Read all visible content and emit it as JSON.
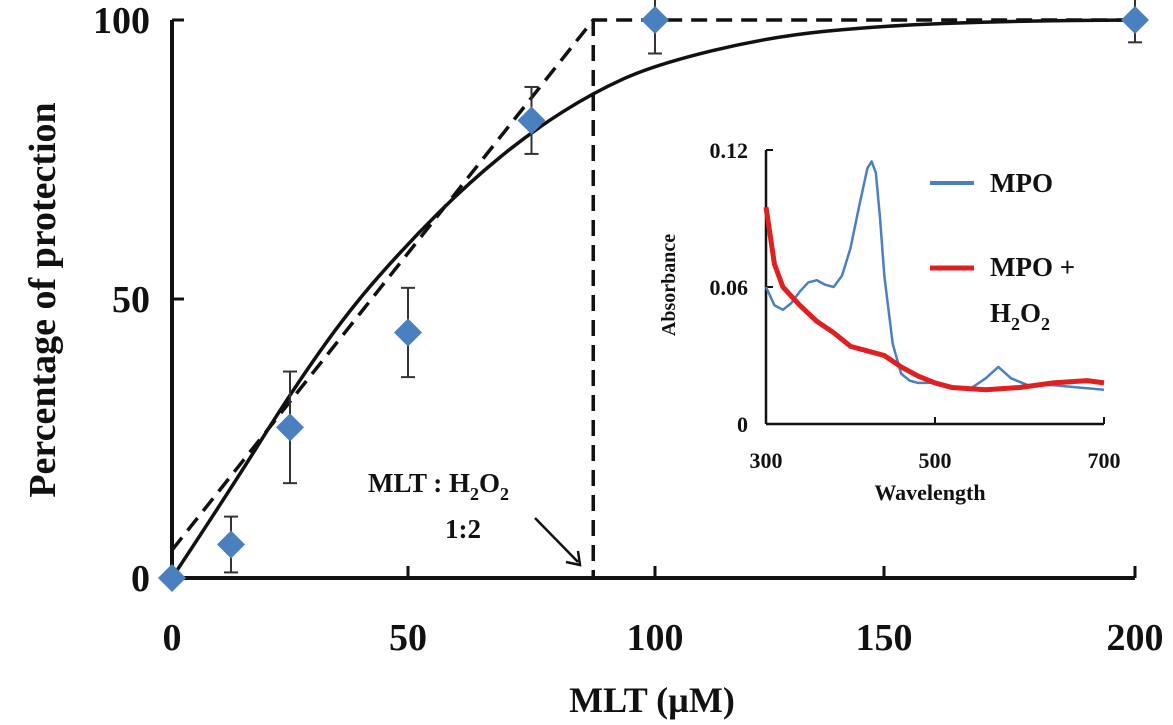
{
  "chart_data": [
    {
      "type": "scatter",
      "xlabel": "MLT (µM)",
      "ylabel": "Percentage of protection",
      "xlim": [
        0,
        200
      ],
      "ylim": [
        0,
        100
      ],
      "xticks": [
        "0",
        "50",
        "100",
        "150",
        "200"
      ],
      "yticks": [
        "0",
        "50",
        "100"
      ],
      "x_axis_note": "x axis is non-linear: 0–100 spans ~63% of the axis, 100–200 the remainder",
      "points": [
        {
          "x": 0,
          "y": 0,
          "err": 0
        },
        {
          "x": 12.5,
          "y": 6,
          "err": 5
        },
        {
          "x": 25,
          "y": 27,
          "err": 10
        },
        {
          "x": 50,
          "y": 44,
          "err": 8
        },
        {
          "x": 75,
          "y": 82,
          "err": 6
        },
        {
          "x": 100,
          "y": 100,
          "err": 6
        },
        {
          "x": 200,
          "y": 100,
          "err": 4
        }
      ],
      "fit_curve": {
        "x": [
          0,
          12.5,
          25,
          37.5,
          50,
          62.5,
          75,
          87.5,
          100,
          125,
          150,
          175,
          200
        ],
        "y": [
          0,
          16,
          33,
          48,
          60,
          71,
          80,
          87,
          92,
          97,
          99,
          99.8,
          100
        ]
      },
      "dashed_line": {
        "x": [
          0,
          87.5,
          87.5,
          200
        ],
        "y": [
          5,
          100,
          100,
          100
        ]
      },
      "vertical_marker_x": 87.5,
      "annotation": {
        "line1_main": "MLT : H",
        "line1_sub1": "2",
        "line1_mid": "O",
        "line1_sub2": "2",
        "line2": "1:2"
      },
      "marker_color": "#4a7fc0",
      "inset": {
        "type": "line",
        "xlabel": "Wavelength",
        "ylabel": "Absorbance",
        "xlim": [
          300,
          700
        ],
        "ylim": [
          0,
          0.12
        ],
        "xticks": [
          "300",
          "500",
          "700"
        ],
        "yticks": [
          "0",
          "0.06",
          "0.12"
        ],
        "series": [
          {
            "name": "MPO",
            "color": "#4a7fc0",
            "x": [
              300,
              310,
              320,
              330,
              340,
              350,
              360,
              370,
              380,
              390,
              400,
              410,
              420,
              425,
              430,
              435,
              440,
              450,
              460,
              470,
              480,
              500,
              520,
              540,
              560,
              575,
              590,
              610,
              640,
              670,
              700
            ],
            "y": [
              0.06,
              0.052,
              0.05,
              0.053,
              0.058,
              0.062,
              0.063,
              0.061,
              0.06,
              0.065,
              0.077,
              0.095,
              0.112,
              0.115,
              0.11,
              0.09,
              0.065,
              0.035,
              0.022,
              0.019,
              0.018,
              0.018,
              0.016,
              0.015,
              0.02,
              0.025,
              0.02,
              0.017,
              0.017,
              0.016,
              0.015
            ]
          },
          {
            "name_main": "MPO +",
            "name_line2_h": "H",
            "name_line2_sub1": "2",
            "name_line2_o": "O",
            "name_line2_sub2": "2",
            "color": "#e02020",
            "x": [
              300,
              310,
              320,
              340,
              360,
              380,
              400,
              420,
              440,
              460,
              480,
              500,
              520,
              560,
              600,
              640,
              680,
              700
            ],
            "y": [
              0.095,
              0.07,
              0.06,
              0.052,
              0.045,
              0.04,
              0.034,
              0.032,
              0.03,
              0.025,
              0.021,
              0.018,
              0.016,
              0.015,
              0.016,
              0.018,
              0.019,
              0.018
            ]
          }
        ]
      }
    }
  ]
}
